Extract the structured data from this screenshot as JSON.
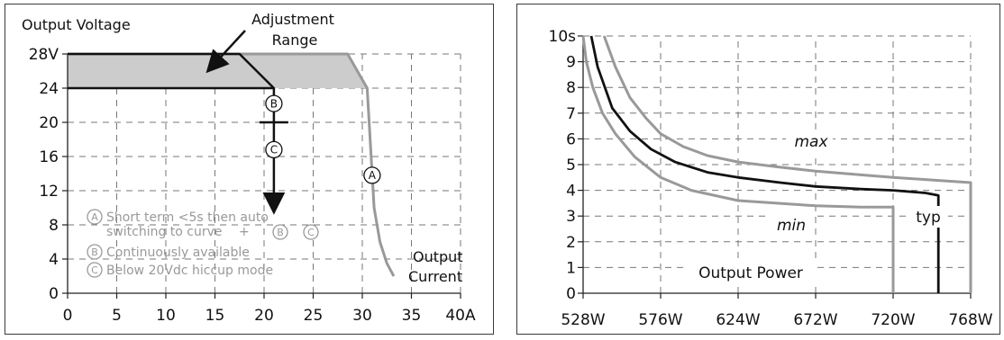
{
  "chart_data": [
    {
      "type": "line",
      "title": "",
      "ylabel": "Output Voltage",
      "xlabel": "Output Current",
      "xlim": [
        0,
        40
      ],
      "ylim": [
        0,
        28
      ],
      "x_ticks": [
        "0",
        "5",
        "10",
        "15",
        "20",
        "25",
        "30",
        "35",
        "40A"
      ],
      "x_tick_values": [
        0,
        5,
        10,
        15,
        20,
        25,
        30,
        35,
        40
      ],
      "y_ticks": [
        "0",
        "4",
        "8",
        "12",
        "16",
        "20",
        "24",
        "28V"
      ],
      "y_tick_values": [
        0,
        4,
        8,
        12,
        16,
        20,
        24,
        28
      ],
      "grid": "dashed",
      "series": [
        {
          "name": "",
          "color": "#999999",
          "points": [
            [
              0,
              28
            ],
            [
              28.5,
              28
            ],
            [
              30.5,
              24
            ],
            [
              30.9,
              16
            ],
            [
              31.2,
              10
            ],
            [
              31.8,
              6
            ],
            [
              32.5,
              3.5
            ],
            [
              33.2,
              2
            ]
          ]
        },
        {
          "name": "",
          "color": "#111111",
          "points": [
            [
              0,
              28
            ],
            [
              17.5,
              28
            ],
            [
              21,
              24
            ],
            [
              0,
              24
            ]
          ]
        }
      ],
      "shaded_region": {
        "label": "Adjustment Range",
        "color": "#cccccc",
        "points": [
          [
            0,
            28
          ],
          [
            28.5,
            28
          ],
          [
            30.5,
            24
          ],
          [
            0,
            24
          ]
        ]
      },
      "vertical_arrow": {
        "x": 21,
        "from_y": 24,
        "to_y": 10.5
      },
      "tick_mark": {
        "x": 21,
        "y": 20
      },
      "markers": [
        {
          "label": "B",
          "x": 21,
          "y": 22.2
        },
        {
          "label": "C",
          "x": 21,
          "y": 16.8
        },
        {
          "label": "A",
          "x": 31,
          "y": 13.8
        }
      ],
      "annotations": {
        "adjustment_line1": "Adjustment",
        "adjustment_line2": "Range",
        "current_line1": "Output",
        "current_line2": "Current"
      },
      "legend": [
        {
          "marker": "A",
          "lines": [
            "Short term <5s then auto",
            "switching to curve"
          ],
          "suffix": "+"
        },
        {
          "marker": "B",
          "lines": [
            "Continuously available"
          ]
        },
        {
          "marker": "C",
          "lines": [
            "Below 20Vdc hiccup mode"
          ]
        }
      ],
      "legend_inline_markers": [
        "B",
        "C"
      ]
    },
    {
      "type": "line",
      "title": "",
      "xlabel": "Output Power",
      "ylabel": "",
      "xlim": [
        528,
        768
      ],
      "ylim": [
        0,
        10
      ],
      "x_ticks": [
        "528W",
        "576W",
        "624W",
        "672W",
        "720W",
        "768W"
      ],
      "x_tick_values": [
        528,
        576,
        624,
        672,
        720,
        768
      ],
      "y_ticks": [
        "0",
        "1",
        "2",
        "3",
        "4",
        "5",
        "6",
        "7",
        "8",
        "9",
        "10s"
      ],
      "y_tick_values": [
        0,
        1,
        2,
        3,
        4,
        5,
        6,
        7,
        8,
        9,
        10
      ],
      "grid": "dashed",
      "series": [
        {
          "name": "max",
          "color": "#999999",
          "points": [
            [
              541,
              10
            ],
            [
              548,
              8.8
            ],
            [
              557,
              7.6
            ],
            [
              567,
              6.8
            ],
            [
              576,
              6.2
            ],
            [
              590,
              5.7
            ],
            [
              605,
              5.35
            ],
            [
              624,
              5.1
            ],
            [
              650,
              4.9
            ],
            [
              672,
              4.75
            ],
            [
              700,
              4.6
            ],
            [
              720,
              4.5
            ],
            [
              745,
              4.4
            ],
            [
              768,
              4.3
            ],
            [
              768,
              0
            ]
          ]
        },
        {
          "name": "typ",
          "color": "#111111",
          "points": [
            [
              533,
              10
            ],
            [
              537,
              8.8
            ],
            [
              546,
              7.2
            ],
            [
              557,
              6.3
            ],
            [
              570,
              5.6
            ],
            [
              585,
              5.1
            ],
            [
              605,
              4.7
            ],
            [
              624,
              4.5
            ],
            [
              650,
              4.3
            ],
            [
              672,
              4.15
            ],
            [
              700,
              4.05
            ],
            [
              720,
              4
            ],
            [
              740,
              3.9
            ],
            [
              748,
              3.8
            ],
            [
              748,
              0
            ]
          ]
        },
        {
          "name": "min",
          "color": "#999999",
          "points": [
            [
              528,
              10
            ],
            [
              530,
              9
            ],
            [
              534,
              8
            ],
            [
              540,
              7
            ],
            [
              548,
              6.2
            ],
            [
              560,
              5.3
            ],
            [
              576,
              4.5
            ],
            [
              595,
              4
            ],
            [
              624,
              3.6
            ],
            [
              672,
              3.4
            ],
            [
              700,
              3.35
            ],
            [
              720,
              3.35
            ],
            [
              720,
              0
            ]
          ]
        }
      ]
    }
  ]
}
